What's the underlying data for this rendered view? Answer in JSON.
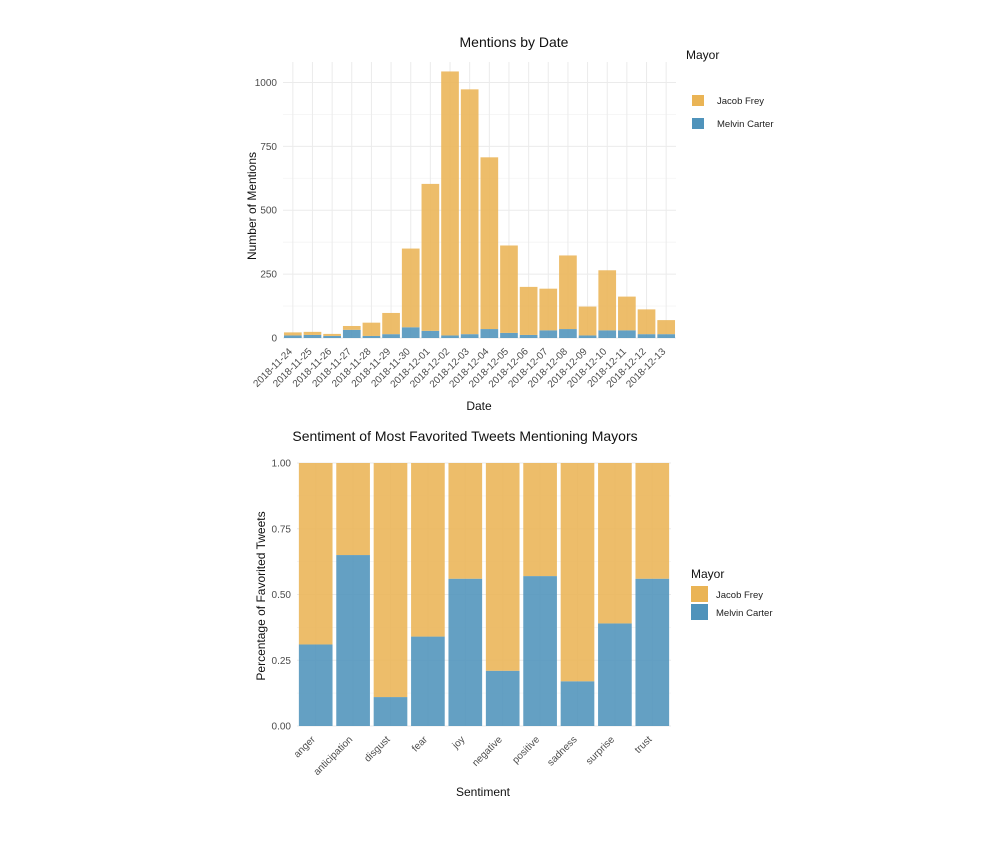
{
  "chart_data": [
    {
      "type": "bar",
      "stacked": true,
      "title": "Mentions by Date",
      "xlabel": "Date",
      "ylabel": "Number of Mentions",
      "ylim": [
        0,
        1080
      ],
      "yticks": [
        0,
        250,
        500,
        750,
        1000
      ],
      "ytick_labels": [
        "0",
        "250",
        "500",
        "750",
        "1000"
      ],
      "categories": [
        "2018-11-24",
        "2018-11-25",
        "2018-11-26",
        "2018-11-27",
        "2018-11-28",
        "2018-11-29",
        "2018-11-30",
        "2018-12-01",
        "2018-12-02",
        "2018-12-03",
        "2018-12-04",
        "2018-12-05",
        "2018-12-06",
        "2018-12-07",
        "2018-12-08",
        "2018-12-09",
        "2018-12-10",
        "2018-12-11",
        "2018-12-12",
        "2018-12-13"
      ],
      "series": [
        {
          "name": "Melvin Carter",
          "color": "#4f93bb",
          "values": [
            10,
            12,
            8,
            32,
            8,
            15,
            42,
            28,
            10,
            15,
            35,
            20,
            12,
            30,
            35,
            10,
            30,
            30,
            15,
            15
          ]
        },
        {
          "name": "Jacob Frey",
          "color": "#eab455",
          "values": [
            12,
            12,
            8,
            15,
            52,
            83,
            308,
            575,
            1033,
            958,
            672,
            342,
            188,
            163,
            288,
            113,
            235,
            132,
            97,
            55
          ]
        }
      ],
      "legend": {
        "title": "Mayor",
        "items": [
          "Jacob Frey",
          "Melvin Carter"
        ],
        "position": "right"
      },
      "grid": true
    },
    {
      "type": "bar",
      "stacked": true,
      "title": "Sentiment of Most Favorited Tweets Mentioning Mayors",
      "xlabel": "Sentiment",
      "ylabel": "Percentage of Favorited Tweets",
      "ylim": [
        0,
        1
      ],
      "yticks": [
        0,
        0.25,
        0.5,
        0.75,
        1
      ],
      "ytick_labels": [
        "0.00",
        "0.25",
        "0.50",
        "0.75",
        "1.00"
      ],
      "categories": [
        "anger",
        "anticipation",
        "disgust",
        "fear",
        "joy",
        "negative",
        "positive",
        "sadness",
        "surprise",
        "trust"
      ],
      "series": [
        {
          "name": "Melvin Carter",
          "color": "#4f93bb",
          "values": [
            0.31,
            0.65,
            0.11,
            0.34,
            0.56,
            0.21,
            0.57,
            0.17,
            0.39,
            0.56
          ]
        },
        {
          "name": "Jacob Frey",
          "color": "#eab455",
          "values": [
            0.69,
            0.35,
            0.89,
            0.66,
            0.44,
            0.79,
            0.43,
            0.83,
            0.61,
            0.44
          ]
        }
      ],
      "legend": {
        "title": "Mayor",
        "items": [
          "Jacob Frey",
          "Melvin Carter"
        ],
        "position": "right"
      },
      "grid": true
    }
  ]
}
